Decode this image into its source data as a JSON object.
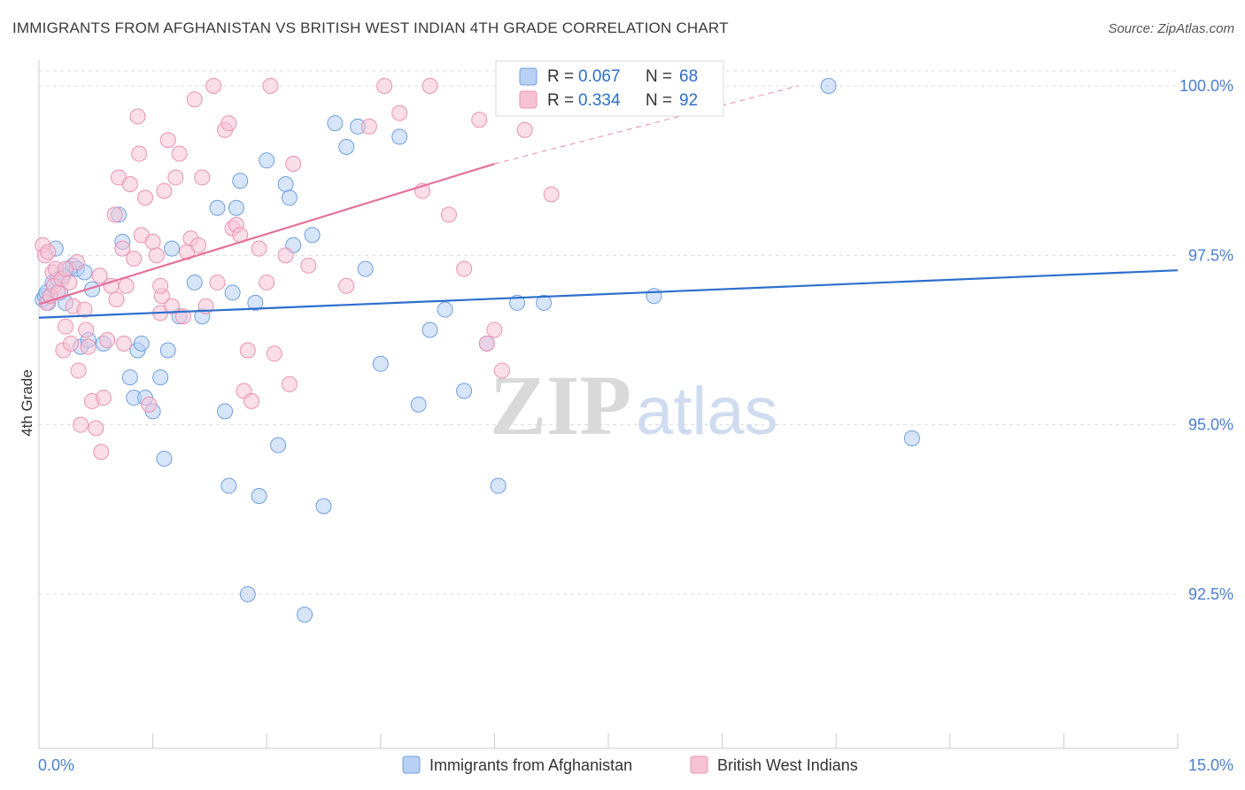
{
  "title": "IMMIGRANTS FROM AFGHANISTAN VS BRITISH WEST INDIAN 4TH GRADE CORRELATION CHART",
  "source": "Source: ZipAtlas.com",
  "watermark": {
    "zip": "ZIP",
    "atlas": "atlas"
  },
  "legend_top": [
    {
      "r_label": "R =",
      "r_value": "0.067",
      "n_label": "N =",
      "n_value": "68"
    },
    {
      "r_label": "R =",
      "r_value": "0.334",
      "n_label": "N =",
      "n_value": "92"
    }
  ],
  "chart_data": {
    "type": "scatter",
    "title": "IMMIGRANTS FROM AFGHANISTAN VS BRITISH WEST INDIAN 4TH GRADE CORRELATION CHART",
    "xlabel": "",
    "ylabel": "4th Grade",
    "xlim": [
      0,
      15
    ],
    "ylim": [
      90.0,
      100.2
    ],
    "x_tick_labels": [
      "0.0%",
      "15.0%"
    ],
    "y_ticks": [
      92.5,
      95.0,
      97.5,
      100.0
    ],
    "y_tick_labels": [
      "92.5%",
      "95.0%",
      "97.5%",
      "100.0%"
    ],
    "grid": true,
    "legend_position": "bottom-center",
    "series": [
      {
        "name": "Immigrants from Afghanistan",
        "color": "#6f9fe0",
        "fill": "#b7d0f3",
        "line_color": "#2c6fcc",
        "R": 0.067,
        "N": 68,
        "trend": {
          "x0": 0.0,
          "y0": 96.58,
          "x1": 15.0,
          "y1": 97.28
        },
        "points": [
          [
            0.05,
            96.85
          ],
          [
            0.08,
            96.9
          ],
          [
            0.1,
            96.95
          ],
          [
            0.12,
            96.8
          ],
          [
            0.15,
            96.9
          ],
          [
            0.18,
            97.1
          ],
          [
            0.22,
            97.6
          ],
          [
            0.25,
            97.15
          ],
          [
            0.28,
            96.95
          ],
          [
            0.32,
            97.2
          ],
          [
            0.35,
            96.8
          ],
          [
            0.4,
            97.3
          ],
          [
            0.45,
            97.35
          ],
          [
            0.5,
            97.3
          ],
          [
            0.55,
            96.15
          ],
          [
            0.6,
            97.25
          ],
          [
            0.65,
            96.25
          ],
          [
            0.7,
            97.0
          ],
          [
            0.85,
            96.2
          ],
          [
            1.05,
            98.1
          ],
          [
            1.1,
            97.7
          ],
          [
            1.2,
            95.7
          ],
          [
            1.25,
            95.4
          ],
          [
            1.3,
            96.1
          ],
          [
            1.35,
            96.2
          ],
          [
            1.4,
            95.4
          ],
          [
            1.5,
            95.2
          ],
          [
            1.6,
            95.7
          ],
          [
            1.65,
            94.5
          ],
          [
            1.7,
            96.1
          ],
          [
            1.75,
            97.6
          ],
          [
            1.85,
            96.6
          ],
          [
            2.05,
            97.1
          ],
          [
            2.15,
            96.6
          ],
          [
            2.35,
            98.2
          ],
          [
            2.45,
            95.2
          ],
          [
            2.5,
            94.1
          ],
          [
            2.55,
            96.95
          ],
          [
            2.6,
            98.2
          ],
          [
            2.65,
            98.6
          ],
          [
            2.75,
            92.5
          ],
          [
            2.85,
            96.8
          ],
          [
            2.9,
            93.95
          ],
          [
            3.0,
            98.9
          ],
          [
            3.15,
            94.7
          ],
          [
            3.25,
            98.55
          ],
          [
            3.3,
            98.35
          ],
          [
            3.35,
            97.65
          ],
          [
            3.5,
            92.2
          ],
          [
            3.6,
            97.8
          ],
          [
            3.75,
            93.8
          ],
          [
            3.9,
            99.45
          ],
          [
            4.05,
            99.1
          ],
          [
            4.2,
            99.4
          ],
          [
            4.3,
            97.3
          ],
          [
            4.5,
            95.9
          ],
          [
            4.75,
            99.25
          ],
          [
            5.0,
            95.3
          ],
          [
            5.15,
            96.4
          ],
          [
            5.35,
            96.7
          ],
          [
            5.6,
            95.5
          ],
          [
            5.9,
            96.2
          ],
          [
            6.05,
            94.1
          ],
          [
            6.3,
            96.8
          ],
          [
            6.65,
            96.8
          ],
          [
            8.1,
            96.9
          ],
          [
            10.4,
            100.0
          ],
          [
            11.5,
            94.8
          ]
        ]
      },
      {
        "name": "British West Indians",
        "color": "#ec92b0",
        "fill": "#f6c3d5",
        "line_color": "#e5709a",
        "R": 0.334,
        "N": 92,
        "trend": {
          "x0": 0.0,
          "y0": 96.78,
          "x1": 6.0,
          "y1": 98.85
        },
        "trend_dashed": {
          "x0": 6.0,
          "y0": 98.85,
          "x1": 10.0,
          "y1": 100.0
        },
        "points": [
          [
            0.05,
            97.65
          ],
          [
            0.08,
            97.5
          ],
          [
            0.1,
            96.8
          ],
          [
            0.12,
            97.55
          ],
          [
            0.15,
            96.9
          ],
          [
            0.18,
            97.25
          ],
          [
            0.2,
            97.05
          ],
          [
            0.22,
            97.3
          ],
          [
            0.25,
            96.95
          ],
          [
            0.3,
            97.15
          ],
          [
            0.32,
            96.1
          ],
          [
            0.35,
            96.45
          ],
          [
            0.4,
            97.1
          ],
          [
            0.42,
            96.2
          ],
          [
            0.45,
            96.75
          ],
          [
            0.5,
            97.4
          ],
          [
            0.52,
            95.8
          ],
          [
            0.55,
            95.0
          ],
          [
            0.6,
            96.7
          ],
          [
            0.62,
            96.4
          ],
          [
            0.65,
            96.15
          ],
          [
            0.7,
            95.35
          ],
          [
            0.75,
            94.95
          ],
          [
            0.8,
            97.2
          ],
          [
            0.82,
            94.6
          ],
          [
            0.85,
            95.4
          ],
          [
            0.9,
            96.25
          ],
          [
            0.95,
            97.05
          ],
          [
            1.0,
            98.1
          ],
          [
            1.02,
            96.85
          ],
          [
            1.05,
            98.65
          ],
          [
            1.1,
            97.6
          ],
          [
            1.12,
            96.2
          ],
          [
            1.15,
            97.05
          ],
          [
            1.2,
            98.55
          ],
          [
            1.25,
            97.45
          ],
          [
            1.3,
            99.55
          ],
          [
            1.32,
            99.0
          ],
          [
            1.35,
            97.8
          ],
          [
            1.4,
            98.35
          ],
          [
            1.45,
            95.3
          ],
          [
            1.5,
            97.7
          ],
          [
            1.55,
            97.5
          ],
          [
            1.6,
            96.65
          ],
          [
            1.62,
            96.9
          ],
          [
            1.65,
            98.45
          ],
          [
            1.7,
            99.2
          ],
          [
            1.75,
            96.75
          ],
          [
            1.8,
            98.65
          ],
          [
            1.85,
            99.0
          ],
          [
            1.9,
            96.6
          ],
          [
            1.95,
            97.55
          ],
          [
            2.0,
            97.75
          ],
          [
            2.05,
            99.8
          ],
          [
            2.1,
            97.65
          ],
          [
            2.15,
            98.65
          ],
          [
            2.2,
            96.75
          ],
          [
            2.3,
            100.0
          ],
          [
            2.35,
            97.1
          ],
          [
            2.45,
            99.35
          ],
          [
            2.5,
            99.45
          ],
          [
            2.55,
            97.9
          ],
          [
            2.6,
            97.95
          ],
          [
            2.65,
            97.8
          ],
          [
            2.7,
            95.5
          ],
          [
            2.75,
            96.1
          ],
          [
            2.8,
            95.35
          ],
          [
            2.9,
            97.6
          ],
          [
            3.0,
            97.1
          ],
          [
            3.05,
            100.0
          ],
          [
            3.1,
            96.05
          ],
          [
            3.25,
            97.5
          ],
          [
            3.3,
            95.6
          ],
          [
            3.35,
            98.85
          ],
          [
            3.55,
            97.35
          ],
          [
            4.05,
            97.05
          ],
          [
            4.35,
            99.4
          ],
          [
            4.55,
            100.0
          ],
          [
            4.75,
            99.6
          ],
          [
            5.05,
            98.45
          ],
          [
            5.15,
            100.0
          ],
          [
            5.4,
            98.1
          ],
          [
            5.6,
            97.3
          ],
          [
            5.8,
            99.5
          ],
          [
            5.9,
            96.2
          ],
          [
            6.0,
            96.4
          ],
          [
            6.1,
            95.8
          ],
          [
            6.3,
            100.0
          ],
          [
            6.4,
            99.35
          ],
          [
            6.75,
            98.4
          ],
          [
            0.35,
            97.3
          ],
          [
            1.6,
            97.05
          ]
        ]
      }
    ]
  }
}
